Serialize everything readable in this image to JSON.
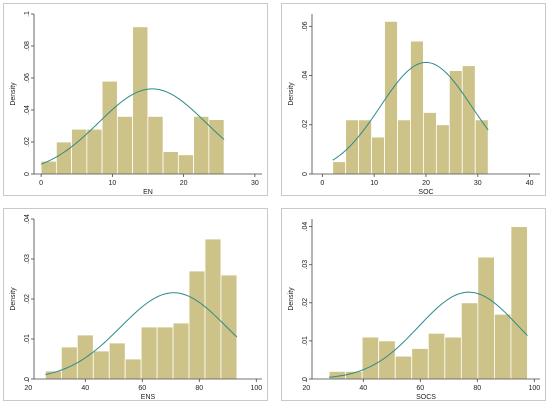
{
  "colors": {
    "bar_fill": "#cdc287",
    "bar_stroke": "#ffffff",
    "curve": "#2f8a8a",
    "axis": "#444444"
  },
  "chart_data": [
    {
      "type": "bar",
      "xlabel": "EN",
      "ylabel": "Density",
      "xlim": [
        -1,
        31
      ],
      "ylim": [
        0,
        0.1
      ],
      "xticks": [
        0,
        10,
        20,
        30
      ],
      "xtick_labels": [
        "0",
        "10",
        "20",
        "30"
      ],
      "yticks": [
        0,
        0.02,
        0.04,
        0.06,
        0.08,
        0.1
      ],
      "ytick_labels": [
        "0",
        ".02",
        ".04",
        ".06",
        ".08",
        ".1"
      ],
      "bin_start": 0,
      "bin_width": 2.14,
      "values": [
        0.008,
        0.02,
        0.028,
        0.028,
        0.058,
        0.036,
        0.092,
        0.036,
        0.014,
        0.012,
        0.036,
        0.034
      ],
      "curve": {
        "mean": 15.6,
        "sd": 7.5,
        "n_scale": 1.0
      }
    },
    {
      "type": "bar",
      "xlabel": "SOC",
      "ylabel": "Density",
      "xlim": [
        -2,
        42
      ],
      "ylim": [
        0,
        0.065
      ],
      "xticks": [
        0,
        10,
        20,
        30,
        40
      ],
      "xtick_labels": [
        "0",
        "10",
        "20",
        "30",
        "40"
      ],
      "yticks": [
        0,
        0.02,
        0.04,
        0.06
      ],
      "ytick_labels": [
        "0",
        ".02",
        ".04",
        ".06"
      ],
      "bin_start": 2,
      "bin_width": 2.5,
      "values": [
        0.005,
        0.022,
        0.022,
        0.015,
        0.062,
        0.022,
        0.054,
        0.025,
        0.02,
        0.042,
        0.044,
        0.022
      ],
      "curve": {
        "mean": 20,
        "sd": 8.8,
        "n_scale": 1.0
      }
    },
    {
      "type": "bar",
      "xlabel": "ENS",
      "ylabel": "Density",
      "xlim": [
        22,
        102
      ],
      "ylim": [
        0,
        0.04
      ],
      "xticks": [
        20,
        40,
        60,
        80,
        100
      ],
      "xtick_labels": [
        "20",
        "40",
        "60",
        "80",
        "100"
      ],
      "yticks": [
        0,
        0.01,
        0.02,
        0.03,
        0.04
      ],
      "ytick_labels": [
        "0",
        ".01",
        ".02",
        ".03",
        ".04"
      ],
      "bin_start": 26,
      "bin_width": 5.6,
      "values": [
        0.002,
        0.008,
        0.011,
        0.007,
        0.009,
        0.005,
        0.013,
        0.013,
        0.014,
        0.027,
        0.035,
        0.026
      ],
      "curve": {
        "mean": 71,
        "sd": 18.5,
        "n_scale": 1.0
      }
    },
    {
      "type": "bar",
      "xlabel": "SOCS",
      "ylabel": "Density",
      "xlim": [
        22,
        102
      ],
      "ylim": [
        0,
        0.042
      ],
      "xticks": [
        20,
        40,
        60,
        80,
        100
      ],
      "xtick_labels": [
        "20",
        "40",
        "60",
        "80",
        "100"
      ],
      "yticks": [
        0,
        0.01,
        0.02,
        0.03,
        0.04
      ],
      "ytick_labels": [
        "0",
        ".01",
        ".02",
        ".03",
        ".04"
      ],
      "bin_start": 28,
      "bin_width": 5.8,
      "values": [
        0.002,
        0.002,
        0.011,
        0.01,
        0.006,
        0.008,
        0.012,
        0.011,
        0.02,
        0.032,
        0.017,
        0.04
      ],
      "curve": {
        "mean": 77,
        "sd": 17.5,
        "n_scale": 1.0
      }
    }
  ]
}
